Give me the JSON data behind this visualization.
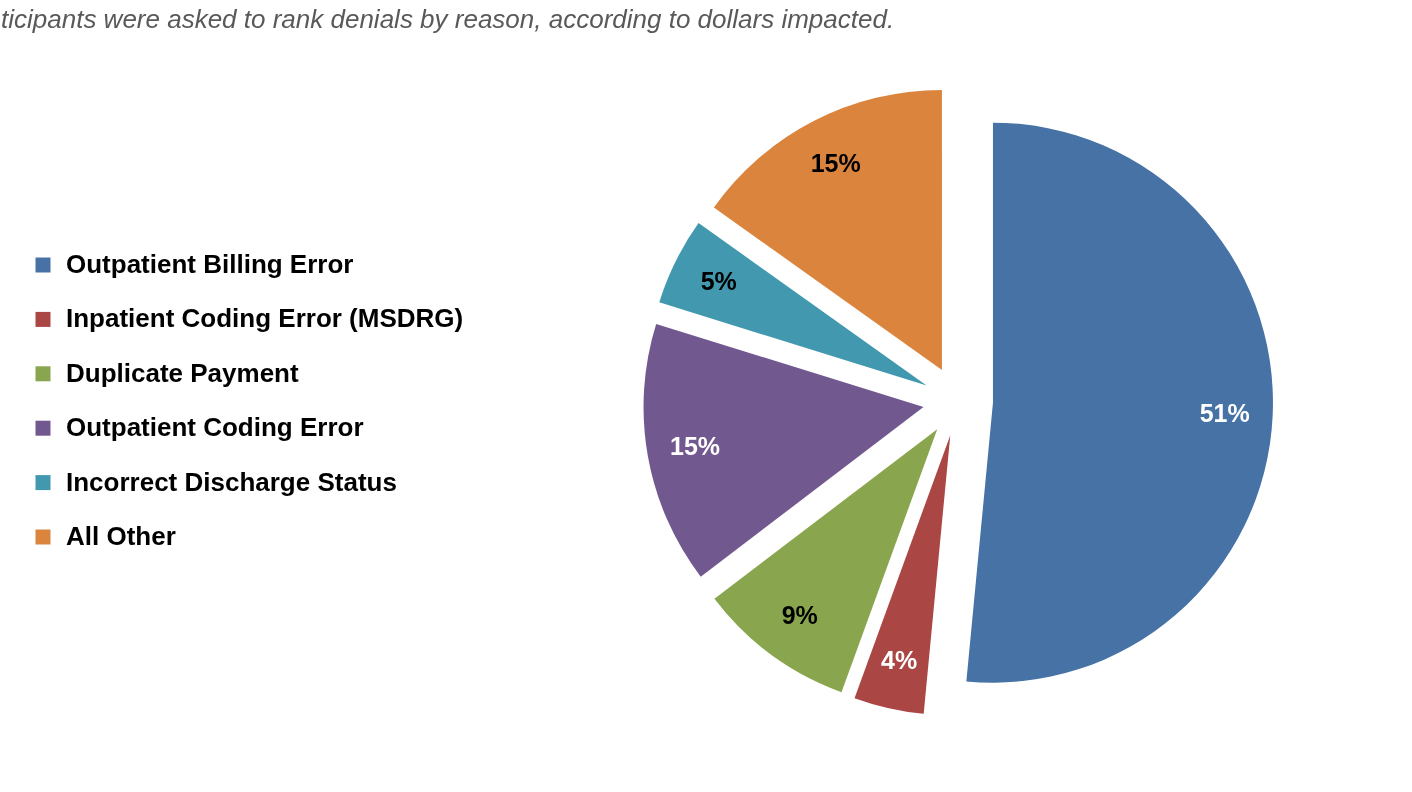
{
  "chart_data": {
    "type": "pie",
    "title": "ticipants were asked to rank denials by reason, according to dollars impacted.",
    "categories": [
      "Outpatient Billing Error",
      "Inpatient Coding Error (MSDRG)",
      "Duplicate Payment",
      "Outpatient Coding Error",
      "Incorrect Discharge Status",
      "All Other"
    ],
    "values": [
      51,
      4,
      9,
      15,
      5,
      15
    ],
    "colors": [
      "#4672a6",
      "#aa4644",
      "#89a54e",
      "#71588f",
      "#4198af",
      "#db843d"
    ],
    "value_labels": [
      "51%",
      "4%",
      "9%",
      "15%",
      "5%",
      "15%"
    ],
    "legend": "left"
  }
}
